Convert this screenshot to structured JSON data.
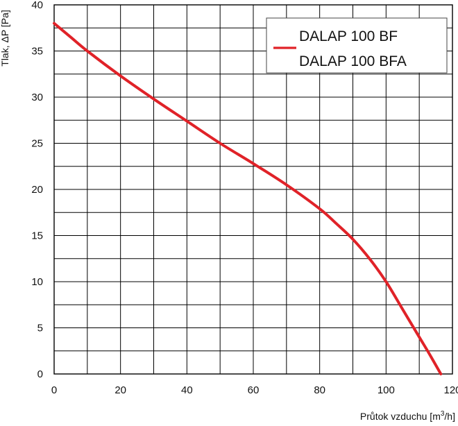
{
  "chart_data": {
    "type": "line",
    "xlabel_prefix": "Průtok vzduchu [m",
    "xlabel_sup": "3",
    "xlabel_suffix": "/h]",
    "ylabel": "Tlak, ΔP [Pa]",
    "xlim": [
      0,
      120
    ],
    "ylim": [
      0,
      40
    ],
    "x_major_ticks": [
      0,
      20,
      40,
      60,
      80,
      100,
      120
    ],
    "x_tick_labels": [
      "0",
      "20",
      "40",
      "60",
      "80",
      "100",
      "120"
    ],
    "x_minor_step": 10,
    "y_major_ticks": [
      0,
      5,
      10,
      15,
      20,
      25,
      30,
      35,
      40
    ],
    "y_tick_labels": [
      "0",
      "5",
      "10",
      "15",
      "20",
      "25",
      "30",
      "35",
      "40"
    ],
    "y_minor_step": 2.5,
    "grid": true,
    "legend_position": "top-right",
    "series": [
      {
        "name": "DALAP 100 BF",
        "name_line2": "DALAP 100 BFA",
        "color": "#e02228",
        "x": [
          0,
          5,
          10,
          20,
          30,
          40,
          50,
          60,
          70,
          80,
          85,
          90,
          95,
          100,
          105,
          110,
          113,
          116.5
        ],
        "y": [
          38,
          36.5,
          35,
          32.3,
          29.8,
          27.4,
          25.0,
          22.8,
          20.5,
          17.9,
          16.3,
          14.6,
          12.5,
          10.0,
          7.0,
          4.0,
          2.2,
          0
        ]
      }
    ]
  }
}
